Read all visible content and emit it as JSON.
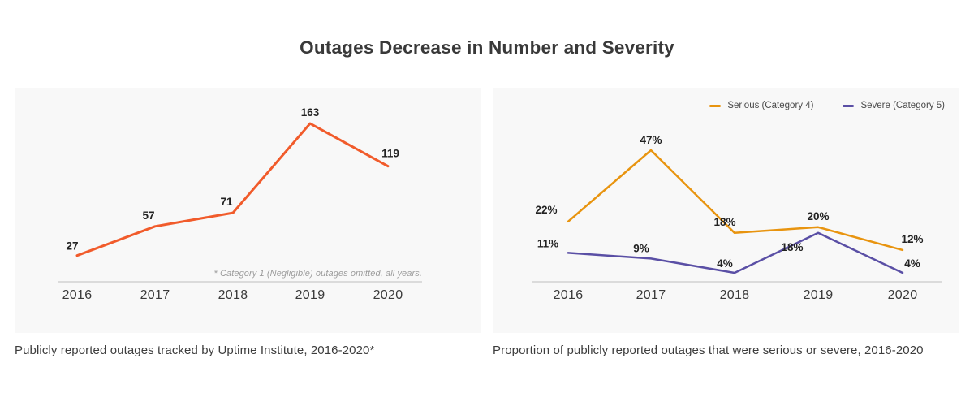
{
  "title": "Outages Decrease in Number and Severity",
  "colors": {
    "outage_line": "#F15B2B",
    "serious_line": "#E8940F",
    "severe_line": "#5A4FA5",
    "panel_background": "#F8F8F8",
    "axis_line": "#DBDBDB"
  },
  "chart_data": [
    {
      "id": "publicly-reported-outages",
      "type": "line",
      "categories": [
        "2016",
        "2017",
        "2018",
        "2019",
        "2020"
      ],
      "series": [
        {
          "values": [
            27,
            57,
            71,
            163,
            119
          ],
          "labels": [
            "27",
            "57",
            "71",
            "163",
            "119"
          ],
          "color": "#F15B2B"
        }
      ],
      "ylim": [
        0,
        180
      ],
      "grid": false,
      "legend": "none",
      "footnote": "* Category 1 (Negligible) outages omitted, all years.",
      "caption": "Publicly reported outages tracked by Uptime Institute, 2016-2020*"
    },
    {
      "id": "serious-severe-proportion",
      "type": "line",
      "categories": [
        "2016",
        "2017",
        "2018",
        "2019",
        "2020"
      ],
      "series": [
        {
          "name": "Serious (Category 4)",
          "values": [
            22,
            47,
            18,
            20,
            12
          ],
          "labels": [
            "22%",
            "47%",
            "18%",
            "20%",
            "12%"
          ],
          "color": "#E8940F"
        },
        {
          "name": "Severe (Category 5)",
          "values": [
            11,
            9,
            4,
            18,
            4
          ],
          "labels": [
            "11%",
            "9%",
            "4%",
            "18%",
            "4%"
          ],
          "color": "#5A4FA5"
        }
      ],
      "ylim": [
        0,
        55
      ],
      "grid": false,
      "legend": "top-right",
      "caption": "Proportion of publicly reported outages that were serious or severe, 2016-2020"
    }
  ]
}
